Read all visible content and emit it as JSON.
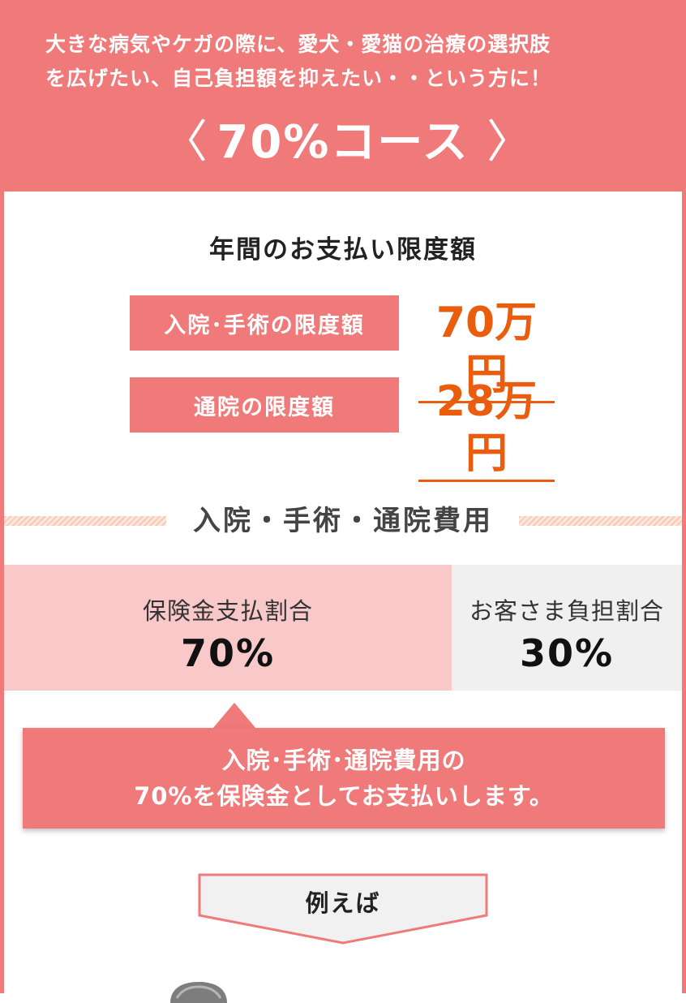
{
  "header": {
    "intro_line1": "大きな病気やケガの際に、愛犬・愛猫の治療の選択肢",
    "intro_line2": "を広げたい、自己負担額を抑えたい・・という方に！",
    "course_left": "〈",
    "course_title": "70%コース",
    "course_right": "〉"
  },
  "limits": {
    "title": "年間のお支払い限度額",
    "items": [
      {
        "label": "入院･手術の限度額",
        "value": "70万円"
      },
      {
        "label": "通院の限度額",
        "value": "28万円"
      }
    ]
  },
  "costs": {
    "title": "入院・手術・通院費用",
    "insurance_label": "保険金支払割合",
    "insurance_value": "70%",
    "customer_label": "お客さま負担割合",
    "customer_value": "30%"
  },
  "callout": {
    "line1": "入院･手術･通院費用の",
    "line2": "70%を保険金としてお支払いします。"
  },
  "example": {
    "label": "例えば"
  },
  "colors": {
    "accent": "#f07a7a",
    "value": "#eb5d0e",
    "insurance_bg": "#f9c8c8",
    "customer_bg": "#f0f0f0"
  }
}
